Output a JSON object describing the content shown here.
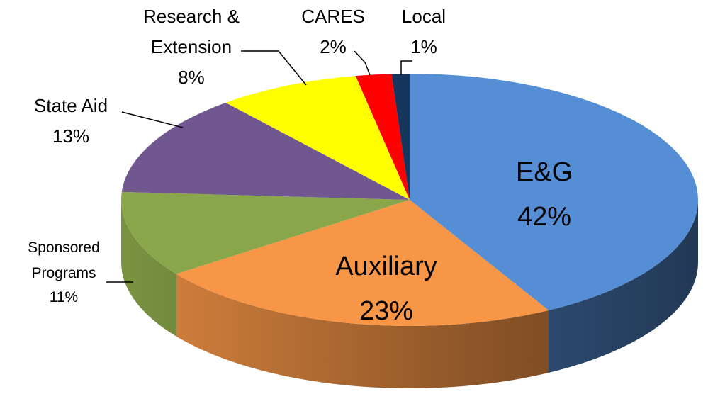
{
  "chart_data": {
    "type": "pie",
    "categories": [
      "E&G",
      "Auxiliary",
      "Sponsored Programs",
      "State Aid",
      "Research & Extension",
      "CARES",
      "Local"
    ],
    "values": [
      42,
      23,
      11,
      13,
      8,
      2,
      1
    ],
    "value_labels": [
      "42%",
      "23%",
      "11%",
      "13%",
      "8%",
      "2%",
      "1%"
    ],
    "colors": [
      "#558ed5",
      "#f79646",
      "#8aa64a",
      "#71578f",
      "#ffff00",
      "#ff0000",
      "#17365d"
    ]
  }
}
